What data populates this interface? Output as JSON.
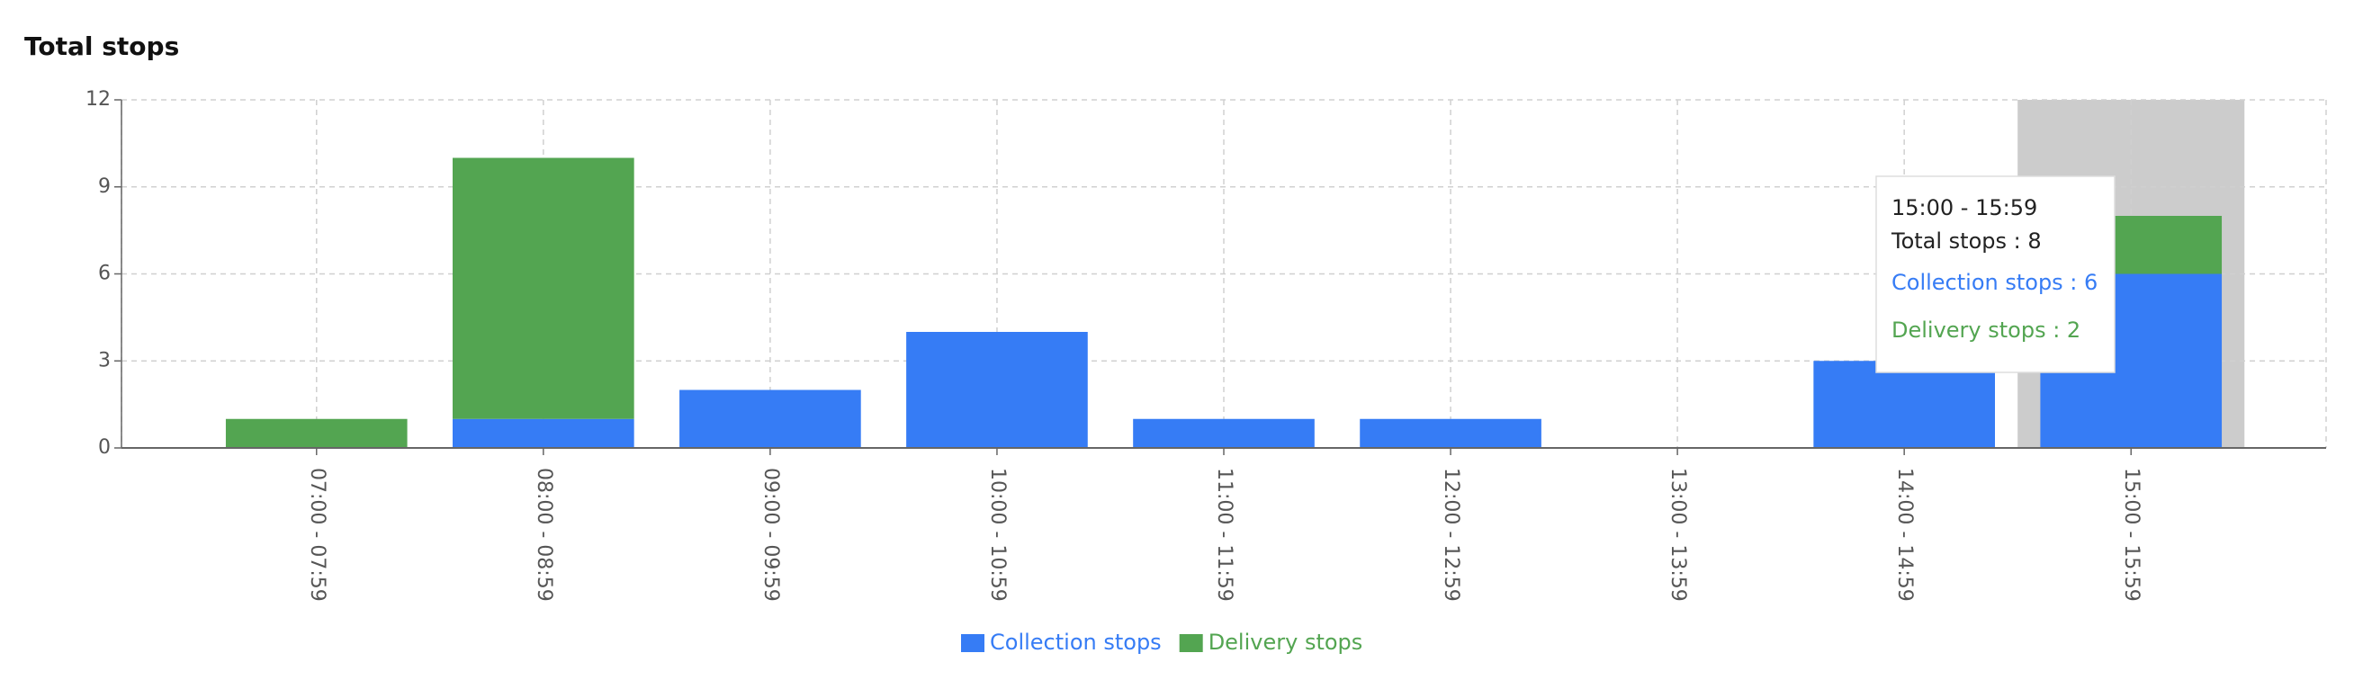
{
  "chart_data": {
    "type": "stacked_bar",
    "title": "Total stops",
    "categories": [
      "07:00 - 07:59",
      "08:00 - 08:59",
      "09:00 - 09:59",
      "10:00 - 10:59",
      "11:00 - 11:59",
      "12:00 - 12:59",
      "13:00 - 13:59",
      "14:00 - 14:59",
      "15:00 - 15:59"
    ],
    "series": [
      {
        "name": "Collection stops",
        "color": "#367cf5",
        "values": [
          0,
          1,
          2,
          4,
          1,
          1,
          0,
          3,
          6
        ]
      },
      {
        "name": "Delivery stops",
        "color": "#53a551",
        "values": [
          1,
          9,
          0,
          0,
          0,
          0,
          0,
          0,
          2
        ]
      }
    ],
    "ylim": [
      0,
      12
    ],
    "yticks": [
      0,
      3,
      6,
      9,
      12
    ],
    "grid": true,
    "legend": "bottom",
    "tooltip": {
      "title": "15:00 - 15:59",
      "lines": [
        "Total stops : 8",
        "Collection stops : 6",
        "Delivery stops : 2"
      ]
    }
  }
}
